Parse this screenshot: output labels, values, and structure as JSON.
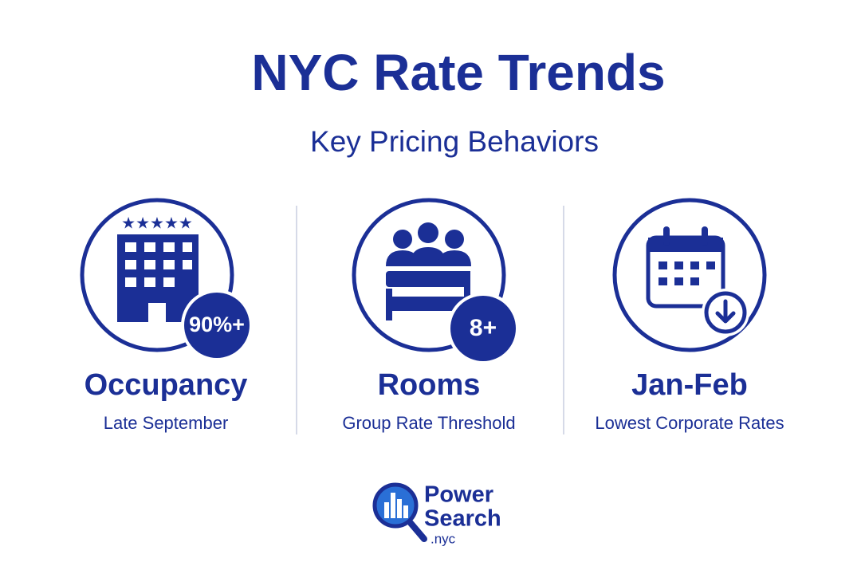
{
  "header": {
    "title": "NYC Rate Trends",
    "subtitle": "Key Pricing Behaviors"
  },
  "cards": [
    {
      "badge": "90%+",
      "label": "Occupancy",
      "caption": "Late September"
    },
    {
      "badge": "8+",
      "label": "Rooms",
      "caption": "Group Rate Threshold"
    },
    {
      "label": "Jan-Feb",
      "caption": "Lowest Corporate Rates"
    }
  ],
  "logo": {
    "line1": "Power",
    "line2": "Search",
    "line3": ".nyc"
  }
}
